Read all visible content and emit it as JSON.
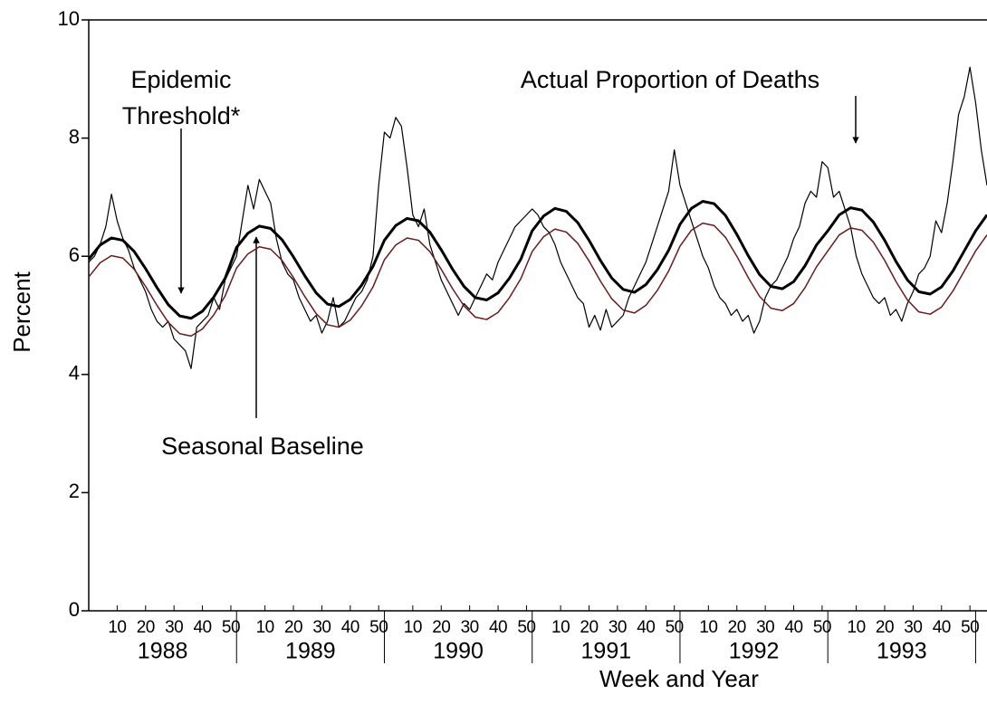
{
  "chart_data": {
    "type": "line",
    "xlabel": "Week and Year",
    "ylabel": "Percent",
    "xlim": [
      0,
      316
    ],
    "ylim": [
      0,
      10
    ],
    "yticks": [
      0,
      2,
      4,
      6,
      8,
      10
    ],
    "xticks": [
      10,
      20,
      30,
      40,
      50,
      {
        "value": 62,
        "label": "10"
      },
      {
        "value": 72,
        "label": "20"
      },
      {
        "value": 82,
        "label": "30"
      },
      {
        "value": 92,
        "label": "40"
      },
      {
        "value": 102,
        "label": "50"
      },
      {
        "value": 114,
        "label": "10"
      },
      {
        "value": 124,
        "label": "20"
      },
      {
        "value": 134,
        "label": "30"
      },
      {
        "value": 144,
        "label": "40"
      },
      {
        "value": 154,
        "label": "50"
      },
      {
        "value": 166,
        "label": "10"
      },
      {
        "value": 176,
        "label": "20"
      },
      {
        "value": 186,
        "label": "30"
      },
      {
        "value": 196,
        "label": "40"
      },
      {
        "value": 206,
        "label": "50"
      },
      {
        "value": 218,
        "label": "10"
      },
      {
        "value": 228,
        "label": "20"
      },
      {
        "value": 238,
        "label": "30"
      },
      {
        "value": 248,
        "label": "40"
      },
      {
        "value": 258,
        "label": "50"
      },
      {
        "value": 270,
        "label": "10"
      },
      {
        "value": 280,
        "label": "20"
      },
      {
        "value": 290,
        "label": "30"
      },
      {
        "value": 300,
        "label": "40"
      },
      {
        "value": 310,
        "label": "50"
      }
    ],
    "year_groups": [
      {
        "label": "1988",
        "start": 0,
        "end": 52
      },
      {
        "label": "1989",
        "start": 52,
        "end": 104
      },
      {
        "label": "1990",
        "start": 104,
        "end": 156
      },
      {
        "label": "1991",
        "start": 156,
        "end": 208
      },
      {
        "label": "1992",
        "start": 208,
        "end": 260
      },
      {
        "label": "1993",
        "start": 260,
        "end": 312
      }
    ],
    "series": [
      {
        "name": "Actual Proportion of Deaths",
        "color": "#000000",
        "width": 1.2,
        "x": [
          0,
          2,
          4,
          6,
          8,
          10,
          12,
          14,
          16,
          18,
          20,
          22,
          24,
          26,
          28,
          30,
          32,
          34,
          36,
          38,
          40,
          42,
          44,
          46,
          48,
          50,
          52,
          54,
          56,
          58,
          60,
          62,
          64,
          66,
          68,
          70,
          72,
          74,
          76,
          78,
          80,
          82,
          84,
          86,
          88,
          90,
          92,
          94,
          96,
          98,
          100,
          102,
          104,
          106,
          108,
          110,
          112,
          114,
          116,
          118,
          120,
          122,
          124,
          126,
          128,
          130,
          132,
          134,
          136,
          138,
          140,
          142,
          144,
          146,
          148,
          150,
          152,
          154,
          156,
          158,
          160,
          162,
          164,
          166,
          168,
          170,
          172,
          174,
          176,
          178,
          180,
          182,
          184,
          186,
          188,
          190,
          192,
          194,
          196,
          198,
          200,
          202,
          204,
          206,
          208,
          210,
          212,
          214,
          216,
          218,
          220,
          222,
          224,
          226,
          228,
          230,
          232,
          234,
          236,
          238,
          240,
          242,
          244,
          246,
          248,
          250,
          252,
          254,
          256,
          258,
          260,
          262,
          264,
          266,
          268,
          270,
          272,
          274,
          276,
          278,
          280,
          282,
          284,
          286,
          288,
          290,
          292,
          294,
          296,
          298,
          300,
          302,
          304,
          306,
          308,
          310,
          312,
          314,
          316
        ],
        "values": [
          5.9,
          6.0,
          6.2,
          6.5,
          7.05,
          6.6,
          6.3,
          6.1,
          5.8,
          5.6,
          5.4,
          5.1,
          4.9,
          4.8,
          4.9,
          4.6,
          4.5,
          4.4,
          4.1,
          4.8,
          4.9,
          5.0,
          5.3,
          5.1,
          5.6,
          5.8,
          6.0,
          6.6,
          7.2,
          6.8,
          7.3,
          7.1,
          6.9,
          6.3,
          5.9,
          5.7,
          5.6,
          5.3,
          5.1,
          4.9,
          5.0,
          4.7,
          4.9,
          5.3,
          4.8,
          4.9,
          5.1,
          5.3,
          5.4,
          5.6,
          6.0,
          7.2,
          8.1,
          8.0,
          8.35,
          8.2,
          7.5,
          6.7,
          6.5,
          6.8,
          6.2,
          5.9,
          5.6,
          5.4,
          5.2,
          5.0,
          5.2,
          5.1,
          5.3,
          5.5,
          5.7,
          5.6,
          5.9,
          6.1,
          6.3,
          6.5,
          6.6,
          6.7,
          6.8,
          6.7,
          6.5,
          6.4,
          6.2,
          5.9,
          5.7,
          5.5,
          5.3,
          5.2,
          4.8,
          5.0,
          4.75,
          5.1,
          4.8,
          4.9,
          5.0,
          5.3,
          5.5,
          5.7,
          5.9,
          6.2,
          6.5,
          6.8,
          7.1,
          7.8,
          7.2,
          6.9,
          6.6,
          6.3,
          6.0,
          5.8,
          5.5,
          5.3,
          5.2,
          5.0,
          5.1,
          4.9,
          5.0,
          4.7,
          4.9,
          5.3,
          5.5,
          5.6,
          5.8,
          6.0,
          6.3,
          6.5,
          6.9,
          7.1,
          7.0,
          7.6,
          7.5,
          7.0,
          7.1,
          6.8,
          6.5,
          6.0,
          5.7,
          5.5,
          5.3,
          5.2,
          5.3,
          5.0,
          5.1,
          4.9,
          5.2,
          5.4,
          5.7,
          5.8,
          6.0,
          6.6,
          6.4,
          6.9,
          7.6,
          8.4,
          8.7,
          9.2,
          8.6,
          7.8,
          7.2
        ]
      },
      {
        "name": "Epidemic Threshold*",
        "color": "#000000",
        "width": 3,
        "x": [
          0,
          4,
          8,
          12,
          16,
          20,
          24,
          28,
          32,
          36,
          40,
          44,
          48,
          52,
          56,
          60,
          64,
          68,
          72,
          76,
          80,
          84,
          88,
          92,
          96,
          100,
          104,
          108,
          112,
          116,
          120,
          124,
          128,
          132,
          136,
          140,
          144,
          148,
          152,
          156,
          160,
          164,
          168,
          172,
          176,
          180,
          184,
          188,
          192,
          196,
          200,
          204,
          208,
          212,
          216,
          220,
          224,
          228,
          232,
          236,
          240,
          244,
          248,
          252,
          256,
          260,
          264,
          268,
          272,
          276,
          280,
          284,
          288,
          292,
          296,
          300,
          304,
          308,
          312,
          316
        ],
        "values": [
          5.95,
          6.19,
          6.31,
          6.27,
          6.08,
          5.79,
          5.47,
          5.18,
          4.99,
          4.95,
          5.07,
          5.31,
          5.63,
          6.15,
          6.39,
          6.51,
          6.47,
          6.28,
          5.99,
          5.67,
          5.38,
          5.19,
          5.15,
          5.27,
          5.51,
          5.83,
          6.27,
          6.52,
          6.64,
          6.6,
          6.41,
          6.11,
          5.78,
          5.49,
          5.3,
          5.26,
          5.38,
          5.63,
          5.95,
          6.43,
          6.68,
          6.81,
          6.76,
          6.57,
          6.27,
          5.93,
          5.63,
          5.44,
          5.39,
          5.52,
          5.77,
          6.1,
          6.54,
          6.81,
          6.93,
          6.89,
          6.69,
          6.37,
          6.01,
          5.69,
          5.49,
          5.45,
          5.57,
          5.84,
          6.19,
          6.43,
          6.7,
          6.82,
          6.78,
          6.58,
          6.27,
          5.91,
          5.6,
          5.4,
          5.36,
          5.48,
          5.75,
          6.09,
          6.43,
          6.7
        ]
      },
      {
        "name": "Seasonal Baseline",
        "color": "#6b1a1a",
        "width": 1.5,
        "x": [
          0,
          4,
          8,
          12,
          16,
          20,
          24,
          28,
          32,
          36,
          40,
          44,
          48,
          52,
          56,
          60,
          64,
          68,
          72,
          76,
          80,
          84,
          88,
          92,
          96,
          100,
          104,
          108,
          112,
          116,
          120,
          124,
          128,
          132,
          136,
          140,
          144,
          148,
          152,
          156,
          160,
          164,
          168,
          172,
          176,
          180,
          184,
          188,
          192,
          196,
          200,
          204,
          208,
          212,
          216,
          220,
          224,
          228,
          232,
          236,
          240,
          244,
          248,
          252,
          256,
          260,
          264,
          268,
          272,
          276,
          280,
          284,
          288,
          292,
          296,
          300,
          304,
          308,
          312,
          316
        ],
        "values": [
          5.65,
          5.89,
          6.01,
          5.97,
          5.78,
          5.49,
          5.17,
          4.88,
          4.69,
          4.65,
          4.77,
          5.01,
          5.33,
          5.8,
          6.04,
          6.16,
          6.12,
          5.93,
          5.64,
          5.32,
          5.03,
          4.84,
          4.8,
          4.92,
          5.16,
          5.48,
          5.94,
          6.19,
          6.31,
          6.27,
          6.08,
          5.78,
          5.45,
          5.16,
          4.97,
          4.93,
          5.05,
          5.3,
          5.62,
          6.08,
          6.33,
          6.46,
          6.41,
          6.22,
          5.92,
          5.58,
          5.28,
          5.09,
          5.04,
          5.17,
          5.42,
          5.75,
          6.17,
          6.44,
          6.56,
          6.52,
          6.32,
          6.0,
          5.64,
          5.32,
          5.12,
          5.08,
          5.2,
          5.47,
          5.82,
          6.09,
          6.36,
          6.48,
          6.44,
          6.24,
          5.93,
          5.57,
          5.26,
          5.06,
          5.02,
          5.14,
          5.41,
          5.75,
          6.09,
          6.36
        ]
      }
    ]
  }
}
